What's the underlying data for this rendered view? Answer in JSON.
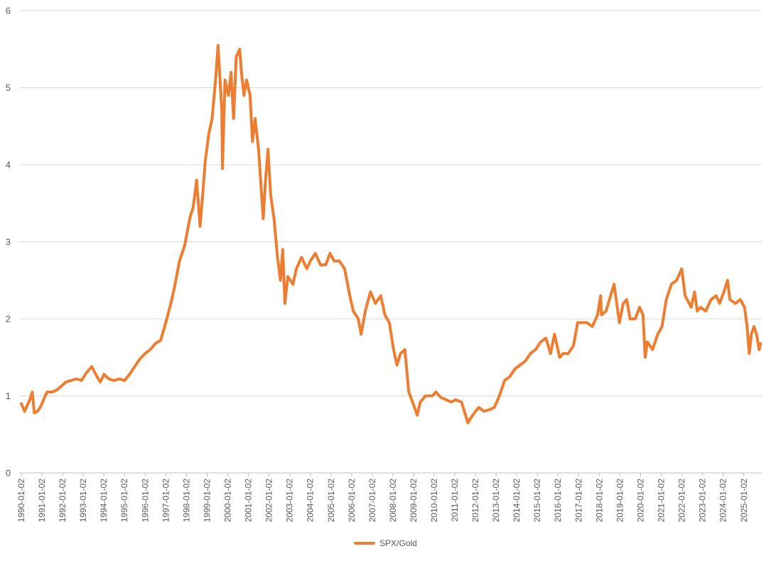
{
  "chart_data": {
    "type": "line",
    "title": "",
    "xlabel": "",
    "ylabel": "",
    "ylim": [
      0,
      6
    ],
    "yticks": [
      0,
      1,
      2,
      3,
      4,
      5,
      6
    ],
    "xticks": [
      "1990-01-02",
      "1991-01-02",
      "1992-01-02",
      "1993-01-02",
      "1994-01-02",
      "1995-01-02",
      "1996-01-02",
      "1997-01-02",
      "1998-01-02",
      "1999-01-02",
      "2000-01-02",
      "2001-01-02",
      "2002-01-02",
      "2003-01-02",
      "2004-01-02",
      "2005-01-02",
      "2006-01-02",
      "2007-01-02",
      "2008-01-02",
      "2009-01-02",
      "2010-01-02",
      "2011-01-02",
      "2012-01-02",
      "2013-01-02",
      "2014-01-02",
      "2015-01-02",
      "2016-01-02",
      "2017-01-02",
      "2018-01-02",
      "2019-01-02",
      "2020-01-02",
      "2021-01-02",
      "2022-01-02",
      "2023-01-02",
      "2024-01-02",
      "2025-01-02"
    ],
    "grid": "horizontal",
    "legend_position": "bottom",
    "series": [
      {
        "name": "SPX/Gold",
        "color": "#ED7D31",
        "points": [
          [
            "1990-01-02",
            0.9
          ],
          [
            "1990-03-01",
            0.8
          ],
          [
            "1990-06-01",
            0.95
          ],
          [
            "1990-07-15",
            1.05
          ],
          [
            "1990-08-20",
            0.78
          ],
          [
            "1990-10-15",
            0.8
          ],
          [
            "1990-12-01",
            0.85
          ],
          [
            "1991-02-01",
            0.95
          ],
          [
            "1991-04-01",
            1.05
          ],
          [
            "1991-07-01",
            1.05
          ],
          [
            "1991-10-01",
            1.08
          ],
          [
            "1991-12-01",
            1.12
          ],
          [
            "1992-03-01",
            1.18
          ],
          [
            "1992-06-01",
            1.2
          ],
          [
            "1992-09-01",
            1.22
          ],
          [
            "1992-12-01",
            1.2
          ],
          [
            "1993-03-01",
            1.3
          ],
          [
            "1993-06-01",
            1.38
          ],
          [
            "1993-09-01",
            1.25
          ],
          [
            "1993-11-01",
            1.18
          ],
          [
            "1994-01-02",
            1.28
          ],
          [
            "1994-04-01",
            1.22
          ],
          [
            "1994-07-01",
            1.2
          ],
          [
            "1994-10-01",
            1.22
          ],
          [
            "1995-01-02",
            1.2
          ],
          [
            "1995-04-01",
            1.28
          ],
          [
            "1995-07-01",
            1.38
          ],
          [
            "1995-10-01",
            1.48
          ],
          [
            "1996-01-02",
            1.55
          ],
          [
            "1996-04-01",
            1.6
          ],
          [
            "1996-07-01",
            1.68
          ],
          [
            "1996-10-01",
            1.72
          ],
          [
            "1997-01-02",
            1.95
          ],
          [
            "1997-04-01",
            2.2
          ],
          [
            "1997-06-01",
            2.4
          ],
          [
            "1997-09-01",
            2.75
          ],
          [
            "1997-12-01",
            2.95
          ],
          [
            "1998-03-01",
            3.3
          ],
          [
            "1998-05-01",
            3.45
          ],
          [
            "1998-07-01",
            3.8
          ],
          [
            "1998-08-31",
            3.2
          ],
          [
            "1998-10-15",
            3.6
          ],
          [
            "1998-12-01",
            4.05
          ],
          [
            "1999-02-01",
            4.4
          ],
          [
            "1999-04-01",
            4.6
          ],
          [
            "1999-06-01",
            5.1
          ],
          [
            "1999-07-15",
            5.55
          ],
          [
            "1999-09-20",
            4.7
          ],
          [
            "1999-10-01",
            3.95
          ],
          [
            "1999-11-15",
            5.1
          ],
          [
            "2000-01-15",
            4.9
          ],
          [
            "2000-03-01",
            5.2
          ],
          [
            "2000-04-15",
            4.6
          ],
          [
            "2000-06-01",
            5.4
          ],
          [
            "2000-08-01",
            5.5
          ],
          [
            "2000-09-01",
            5.2
          ],
          [
            "2000-10-15",
            4.9
          ],
          [
            "2000-12-01",
            5.1
          ],
          [
            "2001-02-01",
            4.9
          ],
          [
            "2001-03-15",
            4.3
          ],
          [
            "2001-05-01",
            4.6
          ],
          [
            "2001-07-01",
            4.2
          ],
          [
            "2001-09-21",
            3.3
          ],
          [
            "2001-11-01",
            3.8
          ],
          [
            "2001-12-15",
            4.2
          ],
          [
            "2002-02-01",
            3.6
          ],
          [
            "2002-04-01",
            3.3
          ],
          [
            "2002-06-01",
            2.8
          ],
          [
            "2002-07-23",
            2.5
          ],
          [
            "2002-09-01",
            2.9
          ],
          [
            "2002-10-10",
            2.2
          ],
          [
            "2002-12-01",
            2.55
          ],
          [
            "2003-03-01",
            2.45
          ],
          [
            "2003-05-01",
            2.65
          ],
          [
            "2003-08-01",
            2.8
          ],
          [
            "2003-11-01",
            2.65
          ],
          [
            "2004-01-02",
            2.75
          ],
          [
            "2004-04-01",
            2.85
          ],
          [
            "2004-07-01",
            2.7
          ],
          [
            "2004-10-01",
            2.7
          ],
          [
            "2004-12-15",
            2.85
          ],
          [
            "2005-03-01",
            2.75
          ],
          [
            "2005-06-01",
            2.75
          ],
          [
            "2005-09-01",
            2.65
          ],
          [
            "2005-12-01",
            2.3
          ],
          [
            "2006-02-01",
            2.1
          ],
          [
            "2006-05-01",
            2.0
          ],
          [
            "2006-06-20",
            1.8
          ],
          [
            "2006-09-01",
            2.1
          ],
          [
            "2006-12-01",
            2.35
          ],
          [
            "2007-03-01",
            2.2
          ],
          [
            "2007-06-01",
            2.3
          ],
          [
            "2007-08-15",
            2.05
          ],
          [
            "2007-11-01",
            1.95
          ],
          [
            "2008-01-15",
            1.6
          ],
          [
            "2008-03-15",
            1.4
          ],
          [
            "2008-05-15",
            1.55
          ],
          [
            "2008-08-01",
            1.6
          ],
          [
            "2008-10-10",
            1.05
          ],
          [
            "2008-12-01",
            0.95
          ],
          [
            "2009-03-09",
            0.75
          ],
          [
            "2009-05-01",
            0.92
          ],
          [
            "2009-08-01",
            1.0
          ],
          [
            "2009-12-01",
            1.0
          ],
          [
            "2010-02-01",
            1.05
          ],
          [
            "2010-05-01",
            0.98
          ],
          [
            "2010-08-01",
            0.95
          ],
          [
            "2010-11-01",
            0.92
          ],
          [
            "2011-01-15",
            0.95
          ],
          [
            "2011-05-01",
            0.92
          ],
          [
            "2011-08-22",
            0.65
          ],
          [
            "2011-10-01",
            0.7
          ],
          [
            "2011-12-15",
            0.78
          ],
          [
            "2012-03-01",
            0.85
          ],
          [
            "2012-06-01",
            0.8
          ],
          [
            "2012-09-01",
            0.82
          ],
          [
            "2012-12-01",
            0.85
          ],
          [
            "2013-03-01",
            1.0
          ],
          [
            "2013-06-01",
            1.2
          ],
          [
            "2013-09-01",
            1.25
          ],
          [
            "2013-12-01",
            1.35
          ],
          [
            "2014-03-01",
            1.4
          ],
          [
            "2014-06-01",
            1.45
          ],
          [
            "2014-09-01",
            1.55
          ],
          [
            "2014-12-01",
            1.6
          ],
          [
            "2015-03-01",
            1.7
          ],
          [
            "2015-06-01",
            1.75
          ],
          [
            "2015-08-24",
            1.55
          ],
          [
            "2015-11-01",
            1.8
          ],
          [
            "2016-02-01",
            1.5
          ],
          [
            "2016-04-01",
            1.55
          ],
          [
            "2016-07-01",
            1.55
          ],
          [
            "2016-10-01",
            1.65
          ],
          [
            "2016-12-15",
            1.95
          ],
          [
            "2017-03-01",
            1.95
          ],
          [
            "2017-06-01",
            1.95
          ],
          [
            "2017-09-01",
            1.9
          ],
          [
            "2017-12-01",
            2.05
          ],
          [
            "2018-01-26",
            2.3
          ],
          [
            "2018-02-08",
            2.05
          ],
          [
            "2018-05-01",
            2.1
          ],
          [
            "2018-09-20",
            2.45
          ],
          [
            "2018-12-24",
            1.95
          ],
          [
            "2019-03-01",
            2.2
          ],
          [
            "2019-05-01",
            2.25
          ],
          [
            "2019-07-01",
            2.0
          ],
          [
            "2019-10-01",
            2.0
          ],
          [
            "2019-12-15",
            2.15
          ],
          [
            "2020-02-15",
            2.05
          ],
          [
            "2020-03-23",
            1.5
          ],
          [
            "2020-05-01",
            1.7
          ],
          [
            "2020-08-01",
            1.6
          ],
          [
            "2020-11-01",
            1.8
          ],
          [
            "2021-01-15",
            1.9
          ],
          [
            "2021-04-01",
            2.25
          ],
          [
            "2021-07-01",
            2.45
          ],
          [
            "2021-10-01",
            2.5
          ],
          [
            "2021-12-30",
            2.65
          ],
          [
            "2022-03-01",
            2.3
          ],
          [
            "2022-06-15",
            2.15
          ],
          [
            "2022-08-15",
            2.35
          ],
          [
            "2022-10-01",
            2.1
          ],
          [
            "2022-12-01",
            2.15
          ],
          [
            "2023-03-01",
            2.1
          ],
          [
            "2023-06-01",
            2.25
          ],
          [
            "2023-09-01",
            2.3
          ],
          [
            "2023-11-01",
            2.2
          ],
          [
            "2024-01-15",
            2.35
          ],
          [
            "2024-03-20",
            2.5
          ],
          [
            "2024-05-01",
            2.25
          ],
          [
            "2024-08-05",
            2.2
          ],
          [
            "2024-11-01",
            2.25
          ],
          [
            "2025-01-15",
            2.15
          ],
          [
            "2025-03-01",
            1.9
          ],
          [
            "2025-04-08",
            1.55
          ],
          [
            "2025-05-15",
            1.8
          ],
          [
            "2025-07-01",
            1.9
          ],
          [
            "2025-08-15",
            1.8
          ],
          [
            "2025-10-01",
            1.6
          ],
          [
            "2025-10-25",
            1.68
          ]
        ]
      }
    ]
  }
}
